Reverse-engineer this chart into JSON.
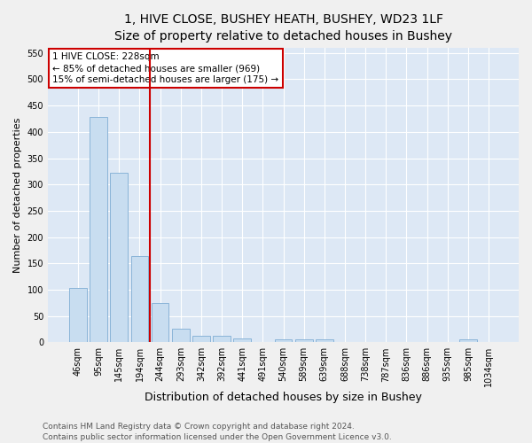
{
  "title": "1, HIVE CLOSE, BUSHEY HEATH, BUSHEY, WD23 1LF",
  "subtitle": "Size of property relative to detached houses in Bushey",
  "xlabel": "Distribution of detached houses by size in Bushey",
  "ylabel": "Number of detached properties",
  "bar_labels": [
    "46sqm",
    "95sqm",
    "145sqm",
    "194sqm",
    "244sqm",
    "293sqm",
    "342sqm",
    "392sqm",
    "441sqm",
    "491sqm",
    "540sqm",
    "589sqm",
    "639sqm",
    "688sqm",
    "738sqm",
    "787sqm",
    "836sqm",
    "886sqm",
    "935sqm",
    "985sqm",
    "1034sqm"
  ],
  "bar_values": [
    104,
    428,
    322,
    164,
    75,
    25,
    12,
    12,
    8,
    0,
    6,
    5,
    5,
    0,
    0,
    0,
    0,
    0,
    0,
    5,
    0
  ],
  "bar_color": "#c8ddf0",
  "bar_edge_color": "#8ab4d8",
  "figure_bg": "#f0f0f0",
  "axes_bg": "#dde8f5",
  "grid_color": "#ffffff",
  "vline_color": "#cc0000",
  "vline_x_index": 3.5,
  "annotation_text": "1 HIVE CLOSE: 228sqm\n← 85% of detached houses are smaller (969)\n15% of semi-detached houses are larger (175) →",
  "annotation_box_color": "#ffffff",
  "annotation_box_edge": "#cc0000",
  "ylim": [
    0,
    560
  ],
  "yticks": [
    0,
    50,
    100,
    150,
    200,
    250,
    300,
    350,
    400,
    450,
    500,
    550
  ],
  "footer_line1": "Contains HM Land Registry data © Crown copyright and database right 2024.",
  "footer_line2": "Contains public sector information licensed under the Open Government Licence v3.0.",
  "title_fontsize": 10,
  "subtitle_fontsize": 9,
  "xlabel_fontsize": 9,
  "ylabel_fontsize": 8,
  "tick_fontsize": 7,
  "annotation_fontsize": 7.5,
  "footer_fontsize": 6.5
}
